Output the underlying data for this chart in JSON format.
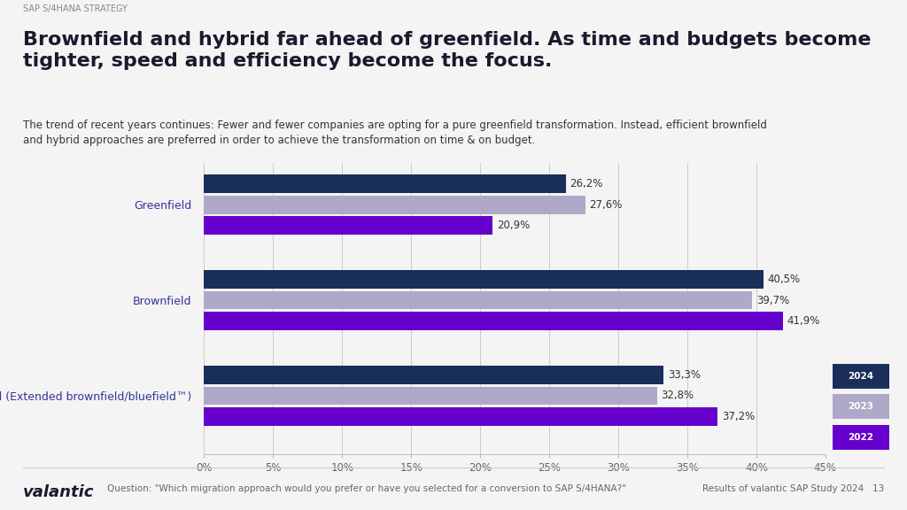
{
  "title_tag": "SAP S/4HANA STRATEGY",
  "title": "Brownfield and hybrid far ahead of greenfield. As time and budgets become\ntighter, speed and efficiency become the focus.",
  "subtitle": "The trend of recent years continues: Fewer and fewer companies are opting for a pure greenfield transformation. Instead, efficient brownfield\nand hybrid approaches are preferred in order to achieve the transformation on time & on budget.",
  "categories": [
    "Greenfield",
    "Brownfield",
    "Hybrid (Extended brownfield/bluefield™)"
  ],
  "years": [
    "2024",
    "2023",
    "2022"
  ],
  "values": {
    "Greenfield": [
      26.2,
      27.6,
      20.9
    ],
    "Brownfield": [
      40.5,
      39.7,
      41.9
    ],
    "Hybrid (Extended brownfield/bluefield™)": [
      33.3,
      32.8,
      37.2
    ]
  },
  "labels": {
    "Greenfield": [
      "26,2%",
      "27,6%",
      "20,9%"
    ],
    "Brownfield": [
      "40,5%",
      "39,7%",
      "41,9%"
    ],
    "Hybrid (Extended brownfield/bluefield™)": [
      "33,3%",
      "32,8%",
      "37,2%"
    ]
  },
  "colors": [
    "#1a2e5a",
    "#b0a8c8",
    "#6600cc"
  ],
  "bg_color": "#f4f4f4",
  "xlim": [
    0,
    45
  ],
  "xticks": [
    0,
    5,
    10,
    15,
    20,
    25,
    30,
    35,
    40,
    45
  ],
  "xticklabels": [
    "0%",
    "5%",
    "10%",
    "15%",
    "20%",
    "25%",
    "30%",
    "35%",
    "40%",
    "45%"
  ],
  "footer_question": "Question: \"Which migration approach would you prefer or have you selected for a conversion to SAP S/4HANA?\"",
  "footer_right": "Results of valantic SAP Study 2024   13"
}
